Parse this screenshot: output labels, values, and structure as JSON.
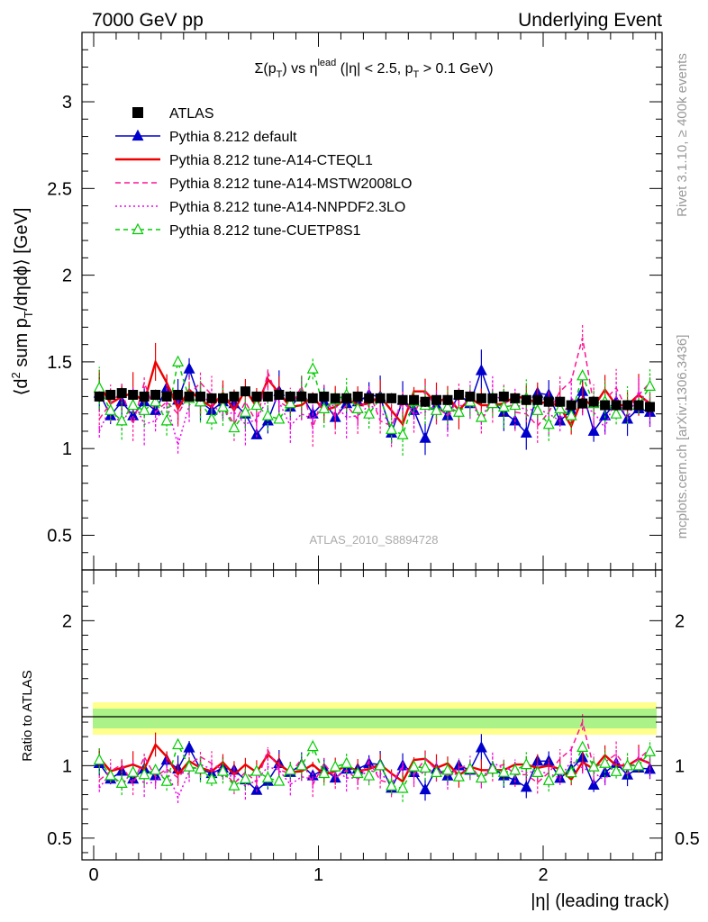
{
  "header": {
    "left": "7000 GeV pp",
    "right": "Underlying Event"
  },
  "side_labels": {
    "rivet": "Rivet 3.1.10, ≥ 400k events",
    "mcplots": "mcplots.cern.ch [arXiv:1306.3436]"
  },
  "chart_data": {
    "type": "line",
    "title": "Σ(p_T) vs η^lead (|η| < 2.5, p_T > 0.1 GeV)",
    "title_parts": {
      "sigma": "Σ(p",
      "sub_t": "T",
      "vs_eta": ") vs η",
      "sup_lead": "lead",
      "range": " (|η| < 2.5, p",
      "sub_t2": "T",
      "cut": " > 0.1 GeV)"
    },
    "ylabel_parts": {
      "a": "⟨d",
      "sup2": "2",
      "b": " sum p",
      "subT": "T",
      "c": "/dηdϕ⟩ [GeV]"
    },
    "xlabel": "|η| (leading track)",
    "ratio_ylabel": "Ratio to ATLAS",
    "watermark": "ATLAS_2010_S8894728",
    "xlim": [
      -0.05,
      2.55
    ],
    "ylim": [
      0.3,
      3.4
    ],
    "ratio_ylim": [
      0.35,
      2.35
    ],
    "x_ticks": [
      "0",
      "1",
      "2"
    ],
    "y_ticks": [
      "0.5",
      "1",
      "1.5",
      "2",
      "2.5",
      "3"
    ],
    "ratio_ticks": [
      "0.5",
      "1",
      "2"
    ],
    "x": [
      0.025,
      0.075,
      0.125,
      0.175,
      0.225,
      0.275,
      0.325,
      0.375,
      0.425,
      0.475,
      0.525,
      0.575,
      0.625,
      0.675,
      0.725,
      0.775,
      0.825,
      0.875,
      0.925,
      0.975,
      1.025,
      1.075,
      1.125,
      1.175,
      1.225,
      1.275,
      1.325,
      1.375,
      1.425,
      1.475,
      1.525,
      1.575,
      1.625,
      1.675,
      1.725,
      1.775,
      1.825,
      1.875,
      1.925,
      1.975,
      2.025,
      2.075,
      2.125,
      2.175,
      2.225,
      2.275,
      2.325,
      2.375,
      2.425,
      2.475
    ],
    "series": [
      {
        "name": "ATLAS",
        "color": "#000000",
        "style": "marker",
        "values": [
          1.3,
          1.31,
          1.32,
          1.31,
          1.3,
          1.31,
          1.3,
          1.31,
          1.3,
          1.3,
          1.29,
          1.29,
          1.3,
          1.33,
          1.3,
          1.3,
          1.31,
          1.3,
          1.3,
          1.29,
          1.3,
          1.29,
          1.29,
          1.3,
          1.29,
          1.29,
          1.29,
          1.28,
          1.28,
          1.27,
          1.28,
          1.28,
          1.31,
          1.3,
          1.29,
          1.29,
          1.3,
          1.29,
          1.28,
          1.28,
          1.27,
          1.27,
          1.25,
          1.26,
          1.27,
          1.25,
          1.25,
          1.25,
          1.25,
          1.24
        ]
      },
      {
        "name": "Pythia 8.212 default",
        "color": "#0000cc",
        "style": "triangle",
        "values": [
          1.32,
          1.19,
          1.27,
          1.19,
          1.27,
          1.22,
          1.35,
          1.28,
          1.46,
          1.27,
          1.22,
          1.27,
          1.26,
          1.2,
          1.08,
          1.16,
          1.33,
          1.24,
          1.31,
          1.2,
          1.27,
          1.18,
          1.26,
          1.27,
          1.31,
          1.3,
          1.09,
          1.28,
          1.22,
          1.06,
          1.25,
          1.19,
          1.31,
          1.26,
          1.45,
          1.27,
          1.21,
          1.16,
          1.09,
          1.32,
          1.31,
          1.16,
          1.22,
          1.33,
          1.1,
          1.19,
          1.27,
          1.17,
          1.23,
          1.21
        ]
      },
      {
        "name": "Pythia 8.212 tune-A14-CTEQL1",
        "color": "#ee0000",
        "style": "solid",
        "values": [
          1.37,
          1.26,
          1.3,
          1.32,
          1.27,
          1.5,
          1.38,
          1.23,
          1.34,
          1.28,
          1.24,
          1.32,
          1.22,
          1.34,
          1.24,
          1.4,
          1.32,
          1.24,
          1.25,
          1.3,
          1.22,
          1.24,
          1.29,
          1.25,
          1.26,
          1.3,
          1.22,
          1.14,
          1.33,
          1.33,
          1.26,
          1.3,
          1.22,
          1.29,
          1.25,
          1.25,
          1.26,
          1.3,
          1.29,
          1.26,
          1.27,
          1.24,
          1.13,
          1.29,
          1.24,
          1.34,
          1.25,
          1.25,
          1.31,
          1.26
        ]
      },
      {
        "name": "Pythia 8.212 tune-A14-MSTW2008LO",
        "color": "#ff1493",
        "style": "dashed",
        "values": [
          1.17,
          1.26,
          1.33,
          1.14,
          1.38,
          1.21,
          1.27,
          1.2,
          1.31,
          1.38,
          1.31,
          1.25,
          1.14,
          1.27,
          1.15,
          1.44,
          1.27,
          1.23,
          1.36,
          1.12,
          1.32,
          1.18,
          1.25,
          1.17,
          1.33,
          1.16,
          1.13,
          1.27,
          1.2,
          1.33,
          1.24,
          1.19,
          1.29,
          1.31,
          1.16,
          1.27,
          1.31,
          1.21,
          1.2,
          1.13,
          1.21,
          1.33,
          1.39,
          1.64,
          1.25,
          1.28,
          1.35,
          1.22,
          1.31,
          1.38
        ]
      },
      {
        "name": "Pythia 8.212 tune-A14-NNPDF2.3LO",
        "color": "#ee00ee",
        "style": "dotted",
        "values": [
          1.1,
          1.24,
          1.13,
          1.28,
          1.14,
          1.16,
          1.26,
          1.02,
          1.25,
          1.31,
          1.26,
          1.19,
          1.21,
          1.14,
          1.17,
          1.29,
          1.27,
          1.13,
          1.2,
          1.17,
          1.24,
          1.25,
          1.18,
          1.19,
          1.25,
          1.22,
          1.13,
          1.28,
          1.2,
          1.21,
          1.25,
          1.19,
          1.24,
          1.28,
          1.16,
          1.32,
          1.27,
          1.26,
          1.22,
          1.23,
          1.2,
          1.16,
          1.29,
          1.24,
          1.21,
          1.12,
          1.3,
          1.17,
          1.33,
          1.25
        ]
      },
      {
        "name": "Pythia 8.212 tune-CUETP8S1",
        "color": "#00cc00",
        "style": "dashed-triangle",
        "values": [
          1.35,
          1.22,
          1.16,
          1.25,
          1.22,
          1.27,
          1.16,
          1.5,
          1.29,
          1.27,
          1.17,
          1.24,
          1.12,
          1.21,
          1.25,
          1.19,
          1.17,
          1.26,
          1.3,
          1.46,
          1.23,
          1.28,
          1.31,
          1.23,
          1.2,
          1.29,
          1.11,
          1.08,
          1.27,
          1.25,
          1.22,
          1.24,
          1.21,
          1.27,
          1.18,
          1.26,
          1.24,
          1.25,
          1.29,
          1.22,
          1.14,
          1.23,
          1.19,
          1.42,
          1.26,
          1.27,
          1.2,
          1.25,
          1.25,
          1.36
        ]
      }
    ]
  }
}
